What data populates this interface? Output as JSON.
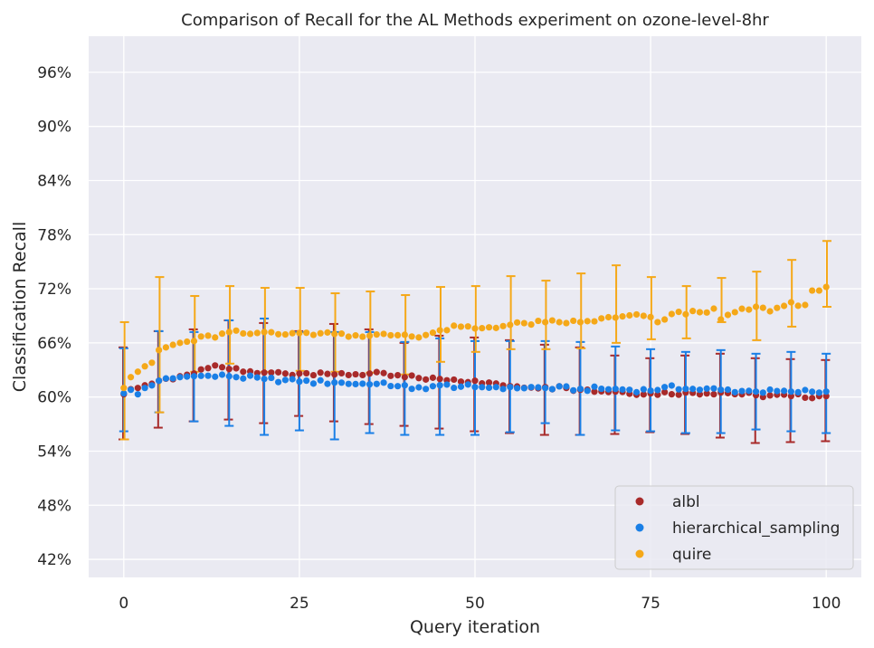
{
  "chart_data": {
    "type": "scatter",
    "title": "Comparison of Recall for the AL Methods experiment on ozone-level-8hr",
    "xlabel": "Query iteration",
    "ylabel": "Classification Recall",
    "xlim": [
      -5,
      105
    ],
    "ylim": [
      40,
      100
    ],
    "x_ticks": [
      0,
      25,
      50,
      75,
      100
    ],
    "x_tick_labels": [
      "0",
      "25",
      "50",
      "75",
      "100"
    ],
    "y_ticks": [
      42,
      48,
      54,
      60,
      66,
      72,
      78,
      84,
      90,
      96
    ],
    "y_tick_labels": [
      "42%",
      "48%",
      "54%",
      "60%",
      "66%",
      "72%",
      "78%",
      "84%",
      "90%",
      "96%"
    ],
    "grid": true,
    "legend_position": "lower-right",
    "errorbar_every": 5,
    "series": [
      {
        "name": "albl",
        "color": "#a82a2a",
        "anchors_x": [
          0,
          2,
          5,
          8,
          10,
          12,
          14,
          17,
          20,
          25,
          28,
          30,
          35,
          40,
          45,
          50,
          52,
          55,
          60,
          63,
          65,
          70,
          75,
          80,
          85,
          90,
          95,
          100
        ],
        "anchors_y": [
          60.3,
          61.0,
          61.8,
          62.3,
          62.6,
          63.2,
          63.3,
          62.8,
          62.7,
          62.6,
          62.7,
          62.5,
          62.6,
          62.2,
          62.0,
          61.8,
          61.6,
          61.2,
          61.1,
          61.0,
          60.8,
          60.6,
          60.4,
          60.5,
          60.5,
          60.2,
          60.1,
          60.1
        ],
        "errorbars": [
          {
            "x": 0,
            "low": 55.3,
            "high": 65.5
          },
          {
            "x": 5,
            "low": 56.6,
            "high": 67.3
          },
          {
            "x": 10,
            "low": 57.3,
            "high": 67.5
          },
          {
            "x": 15,
            "low": 57.5,
            "high": 68.5
          },
          {
            "x": 20,
            "low": 57.1,
            "high": 68.2
          },
          {
            "x": 25,
            "low": 57.9,
            "high": 67.3
          },
          {
            "x": 30,
            "low": 57.3,
            "high": 68.1
          },
          {
            "x": 35,
            "low": 57.0,
            "high": 67.5
          },
          {
            "x": 40,
            "low": 56.8,
            "high": 66.0
          },
          {
            "x": 45,
            "low": 56.5,
            "high": 66.8
          },
          {
            "x": 50,
            "low": 56.2,
            "high": 66.6
          },
          {
            "x": 55,
            "low": 56.0,
            "high": 66.3
          },
          {
            "x": 60,
            "low": 55.8,
            "high": 65.8
          },
          {
            "x": 65,
            "low": 55.8,
            "high": 65.5
          },
          {
            "x": 70,
            "low": 55.9,
            "high": 64.6
          },
          {
            "x": 75,
            "low": 56.1,
            "high": 64.3
          },
          {
            "x": 80,
            "low": 55.9,
            "high": 64.6
          },
          {
            "x": 85,
            "low": 55.5,
            "high": 64.8
          },
          {
            "x": 90,
            "low": 54.9,
            "high": 64.3
          },
          {
            "x": 95,
            "low": 55.0,
            "high": 64.2
          },
          {
            "x": 100,
            "low": 55.1,
            "high": 64.1
          }
        ]
      },
      {
        "name": "hierarchical_sampling",
        "color": "#1a7fe6",
        "anchors_x": [
          0,
          1,
          2,
          3,
          5,
          8,
          10,
          15,
          20,
          25,
          30,
          35,
          40,
          41,
          45,
          50,
          55,
          60,
          65,
          70,
          75,
          77,
          80,
          85,
          90,
          95,
          100
        ],
        "anchors_y": [
          60.4,
          60.8,
          60.3,
          61.0,
          61.8,
          62.2,
          62.3,
          62.3,
          62.0,
          61.7,
          61.6,
          61.4,
          61.3,
          60.9,
          61.3,
          61.1,
          61.1,
          61.0,
          60.9,
          60.9,
          60.7,
          61.1,
          60.9,
          60.8,
          60.6,
          60.6,
          60.6
        ],
        "errorbars": [
          {
            "x": 0,
            "low": 56.2,
            "high": 65.4
          },
          {
            "x": 5,
            "low": 58.3,
            "high": 67.3
          },
          {
            "x": 10,
            "low": 57.3,
            "high": 67.2
          },
          {
            "x": 15,
            "low": 56.8,
            "high": 68.5
          },
          {
            "x": 20,
            "low": 55.8,
            "high": 68.7
          },
          {
            "x": 25,
            "low": 56.3,
            "high": 67.2
          },
          {
            "x": 30,
            "low": 55.3,
            "high": 67.2
          },
          {
            "x": 35,
            "low": 56.0,
            "high": 67.2
          },
          {
            "x": 40,
            "low": 55.8,
            "high": 66.1
          },
          {
            "x": 45,
            "low": 55.8,
            "high": 66.5
          },
          {
            "x": 50,
            "low": 55.8,
            "high": 66.2
          },
          {
            "x": 55,
            "low": 56.1,
            "high": 66.2
          },
          {
            "x": 60,
            "low": 57.1,
            "high": 66.2
          },
          {
            "x": 65,
            "low": 55.8,
            "high": 66.1
          },
          {
            "x": 70,
            "low": 56.3,
            "high": 65.6
          },
          {
            "x": 75,
            "low": 56.2,
            "high": 65.3
          },
          {
            "x": 80,
            "low": 56.0,
            "high": 65.0
          },
          {
            "x": 85,
            "low": 56.0,
            "high": 65.2
          },
          {
            "x": 90,
            "low": 56.4,
            "high": 64.8
          },
          {
            "x": 95,
            "low": 56.2,
            "high": 65.0
          },
          {
            "x": 100,
            "low": 56.0,
            "high": 64.8
          }
        ]
      },
      {
        "name": "quire",
        "color": "#f5a818",
        "anchors_x": [
          0,
          1,
          2,
          3,
          4,
          5,
          6,
          8,
          10,
          12,
          13,
          15,
          18,
          20,
          25,
          30,
          35,
          40,
          42,
          45,
          48,
          50,
          55,
          60,
          65,
          70,
          74,
          76,
          78,
          82,
          84,
          85,
          86,
          90,
          92,
          94,
          95,
          97,
          98,
          99,
          100
        ],
        "anchors_y": [
          61.0,
          62.2,
          62.8,
          63.4,
          63.8,
          65.2,
          65.5,
          66.0,
          66.2,
          66.8,
          66.6,
          67.2,
          67.0,
          67.2,
          67.1,
          67.0,
          66.8,
          66.9,
          66.6,
          67.4,
          67.8,
          67.6,
          68.0,
          68.3,
          68.3,
          68.8,
          69.0,
          68.3,
          69.2,
          69.4,
          69.8,
          68.6,
          69.1,
          70.0,
          69.5,
          70.1,
          70.5,
          70.2,
          71.8,
          71.8,
          72.2
        ],
        "errorbars": [
          {
            "x": 0,
            "low": 55.3,
            "high": 68.3
          },
          {
            "x": 5,
            "low": 58.3,
            "high": 73.3
          },
          {
            "x": 10,
            "low": 62.8,
            "high": 71.2
          },
          {
            "x": 15,
            "low": 63.7,
            "high": 72.3
          },
          {
            "x": 20,
            "low": 62.8,
            "high": 72.1
          },
          {
            "x": 25,
            "low": 62.9,
            "high": 72.1
          },
          {
            "x": 30,
            "low": 62.8,
            "high": 71.5
          },
          {
            "x": 35,
            "low": 62.7,
            "high": 71.7
          },
          {
            "x": 40,
            "low": 62.5,
            "high": 71.3
          },
          {
            "x": 45,
            "low": 63.9,
            "high": 72.2
          },
          {
            "x": 50,
            "low": 65.0,
            "high": 72.3
          },
          {
            "x": 55,
            "low": 65.3,
            "high": 73.4
          },
          {
            "x": 60,
            "low": 65.3,
            "high": 72.9
          },
          {
            "x": 65,
            "low": 65.4,
            "high": 73.7
          },
          {
            "x": 70,
            "low": 66.0,
            "high": 74.6
          },
          {
            "x": 75,
            "low": 66.4,
            "high": 73.3
          },
          {
            "x": 80,
            "low": 66.5,
            "high": 72.3
          },
          {
            "x": 85,
            "low": 68.3,
            "high": 73.2
          },
          {
            "x": 90,
            "low": 66.3,
            "high": 73.9
          },
          {
            "x": 95,
            "low": 67.8,
            "high": 75.2
          },
          {
            "x": 100,
            "low": 70.0,
            "high": 77.3
          }
        ]
      }
    ]
  }
}
